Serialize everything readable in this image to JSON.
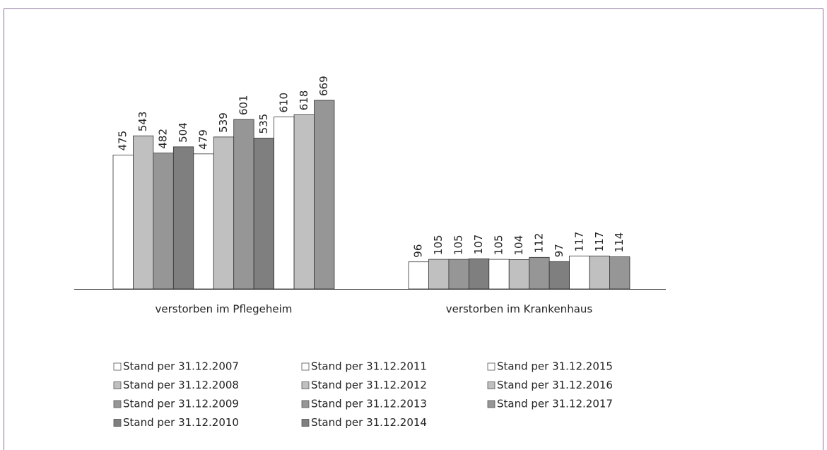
{
  "chart_data": {
    "type": "bar",
    "categories": [
      "verstorben im Pflegeheim",
      "verstorben im Krankenhaus"
    ],
    "series": [
      {
        "name": "Stand per 31.12.2007",
        "color": "#ffffff",
        "values": [
          475,
          96
        ]
      },
      {
        "name": "Stand per 31.12.2008",
        "color": "#c0c0c0",
        "values": [
          543,
          105
        ]
      },
      {
        "name": "Stand per 31.12.2009",
        "color": "#969696",
        "values": [
          482,
          105
        ]
      },
      {
        "name": "Stand per 31.12.2010",
        "color": "#7f7f7f",
        "values": [
          504,
          107
        ]
      },
      {
        "name": "Stand per 31.12.2011",
        "color": "#ffffff",
        "values": [
          479,
          105
        ]
      },
      {
        "name": "Stand per 31.12.2012",
        "color": "#c0c0c0",
        "values": [
          539,
          104
        ]
      },
      {
        "name": "Stand per 31.12.2013",
        "color": "#969696",
        "values": [
          601,
          112
        ]
      },
      {
        "name": "Stand per 31.12.2014",
        "color": "#7f7f7f",
        "values": [
          535,
          97
        ]
      },
      {
        "name": "Stand per 31.12.2015",
        "color": "#ffffff",
        "values": [
          610,
          117
        ]
      },
      {
        "name": "Stand per 31.12.2016",
        "color": "#c0c0c0",
        "values": [
          618,
          117
        ]
      },
      {
        "name": "Stand per 31.12.2017",
        "color": "#969696",
        "values": [
          669,
          114
        ]
      }
    ]
  }
}
